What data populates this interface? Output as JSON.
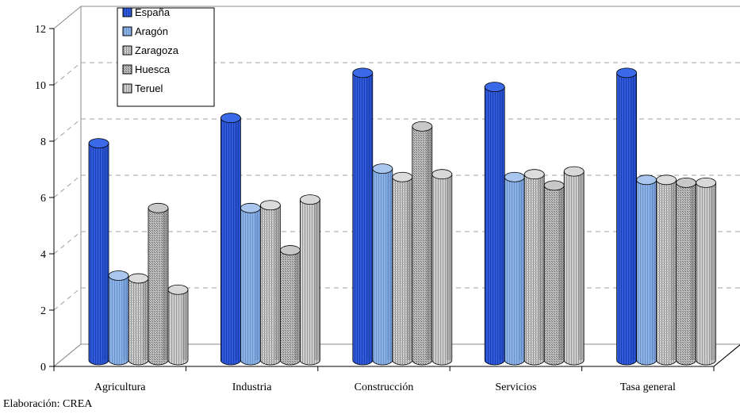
{
  "chart_data": {
    "type": "bar",
    "categories": [
      "Agricultura",
      "Industria",
      "Construcción",
      "Servicios",
      "Tasa general"
    ],
    "series": [
      {
        "name": "España",
        "values": [
          7.7,
          8.6,
          10.2,
          9.7,
          10.2
        ],
        "color": "#2f5bdc"
      },
      {
        "name": "Aragón",
        "values": [
          3.0,
          5.4,
          6.8,
          6.5,
          6.4
        ],
        "color": "#8cb2e6"
      },
      {
        "name": "Zaragoza",
        "values": [
          2.9,
          5.5,
          6.5,
          6.6,
          6.4
        ],
        "color": "#c8c8c8"
      },
      {
        "name": "Huesca",
        "values": [
          5.4,
          3.9,
          8.3,
          6.2,
          6.3
        ],
        "color": "#a8a8a8"
      },
      {
        "name": "Teruel",
        "values": [
          2.5,
          5.7,
          6.6,
          6.7,
          6.3
        ],
        "color": "#c0c0c0"
      }
    ],
    "yticks": [
      0,
      2,
      4,
      6,
      8,
      10,
      12
    ],
    "ylim": [
      0,
      12
    ],
    "grid": true,
    "legend_position": "top-left"
  },
  "source_note": "Elaboración: CREA"
}
